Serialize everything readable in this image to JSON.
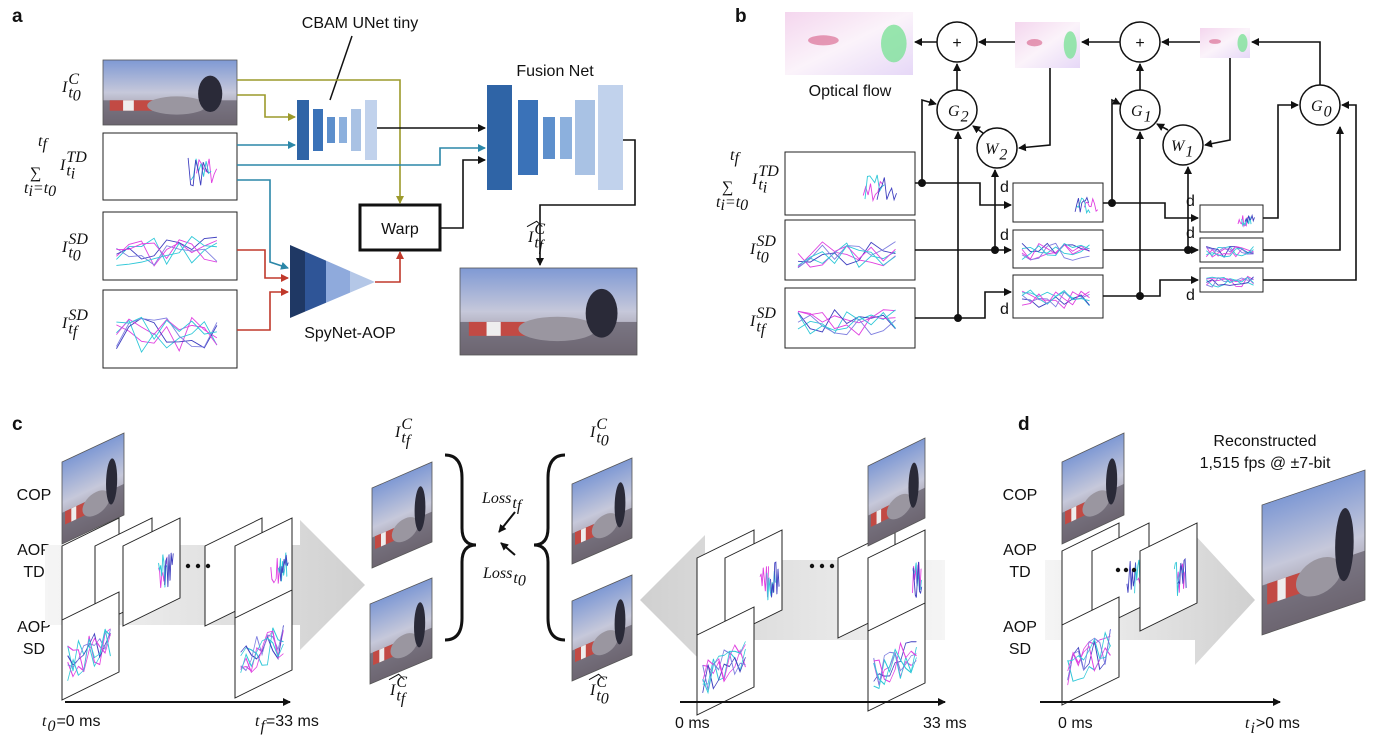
{
  "a": {
    "label": "a",
    "cbam_title": "CBAM UNet tiny",
    "fusion_title": "Fusion Net",
    "warp": "Warp",
    "spynet": "SpyNet-AOP",
    "color_input": {
      "base": "I",
      "sup": "C",
      "sub": "t",
      "subsub": "0"
    },
    "td_sum": {
      "symbol": "∑",
      "upper": "t",
      "upper_sub": "f",
      "lower": "t",
      "lower_sub": "i",
      "lower_rest": "=t",
      "lower_rest_sub": "0",
      "term": {
        "base": "I",
        "sup": "TD",
        "sub": "t",
        "subsub": "i"
      }
    },
    "sd_t0": {
      "base": "I",
      "sup": "SD",
      "sub": "t",
      "subsub": "0"
    },
    "sd_tf": {
      "base": "I",
      "sup": "SD",
      "sub": "t",
      "subsub": "f"
    },
    "output": {
      "base": "I",
      "sup": "C",
      "sub": "t",
      "subsub": "f"
    }
  },
  "b": {
    "label": "b",
    "optical_flow": "Optical flow",
    "adders": [
      "+",
      "+"
    ],
    "g_blocks": [
      {
        "base": "G",
        "sub": "2"
      },
      {
        "base": "G",
        "sub": "1"
      },
      {
        "base": "G",
        "sub": "0"
      }
    ],
    "w_blocks": [
      {
        "base": "W",
        "sub": "2"
      },
      {
        "base": "W",
        "sub": "1"
      }
    ],
    "td_sum": {
      "symbol": "∑",
      "upper": "t",
      "upper_sub": "f",
      "lower": "t",
      "lower_sub": "i",
      "lower_rest": "=t",
      "lower_rest_sub": "0",
      "term": {
        "base": "I",
        "sup": "TD",
        "sub": "t",
        "subsub": "i"
      }
    },
    "sd_t0": {
      "base": "I",
      "sup": "SD",
      "sub": "t",
      "subsub": "0"
    },
    "sd_tf": {
      "base": "I",
      "sup": "SD",
      "sub": "t",
      "subsub": "f"
    },
    "downsample_labels": [
      "d",
      "d",
      "d",
      "d",
      "d",
      "d"
    ]
  },
  "c": {
    "label": "c",
    "row_labels": [
      [
        "COP"
      ],
      [
        "AOP",
        "TD"
      ],
      [
        "AOP",
        "SD"
      ]
    ],
    "target": {
      "base": "I",
      "sup": "C",
      "sub": "t",
      "subsub": "f"
    },
    "target_pred": {
      "base": "I",
      "sup": "C",
      "sub": "t",
      "subsub": "f"
    },
    "loss_tf": {
      "base": "Loss",
      "sub": "t",
      "subsub": "f"
    },
    "loss_t0": {
      "base": "Loss",
      "sub": "t",
      "subsub": "0"
    },
    "source": {
      "base": "I",
      "sup": "C",
      "sub": "t",
      "subsub": "0"
    },
    "source_pred": {
      "base": "I",
      "sup": "C",
      "sub": "t",
      "subsub": "0"
    },
    "time_left": [
      {
        "base": "t",
        "sub": "0",
        "rest": "=0 ms"
      },
      {
        "base": "t",
        "sub": "f",
        "rest": "=33 ms"
      }
    ],
    "time_right": [
      "0 ms",
      "33 ms"
    ]
  },
  "d": {
    "label": "d",
    "row_labels": [
      [
        "COP"
      ],
      [
        "AOP",
        "TD"
      ],
      [
        "AOP",
        "SD"
      ]
    ],
    "reconstructed": [
      "Reconstructed",
      "1,515 fps @ ±7-bit"
    ],
    "time": [
      "0 ms",
      {
        "base": "t",
        "sub": "i",
        "rest": " >0 ms"
      }
    ]
  }
}
